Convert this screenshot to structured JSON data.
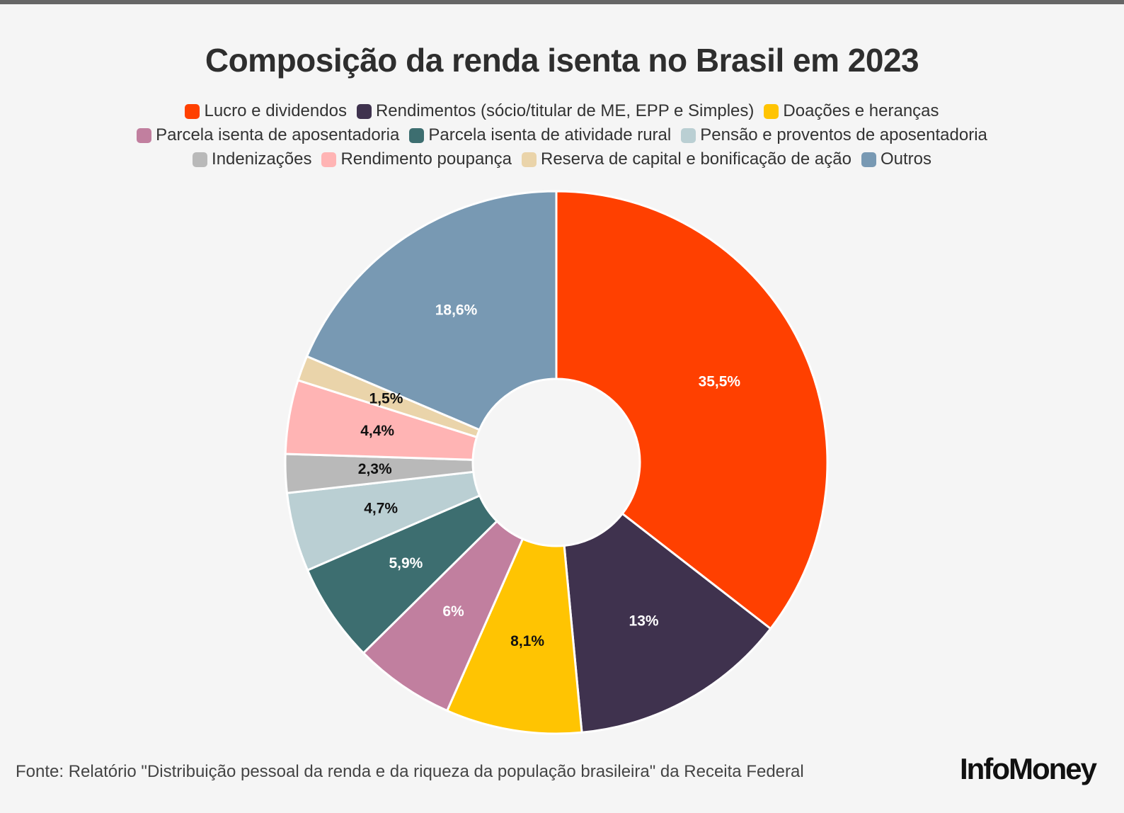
{
  "chart_data": {
    "type": "pie",
    "title": "Composição da renda isenta no Brasil em 2023",
    "legend_position": "top",
    "series": [
      {
        "name": "Lucro e dividendos",
        "value": 35.5,
        "label": "35,5%",
        "color": "#ff4000",
        "label_color": "#ffffff"
      },
      {
        "name": "Rendimentos (sócio/titular de ME, EPP e Simples)",
        "value": 13,
        "label": "13%",
        "color": "#3f324e",
        "label_color": "#ffffff"
      },
      {
        "name": "Doações e heranças",
        "value": 8.1,
        "label": "8,1%",
        "color": "#ffc402",
        "label_color": "#111111"
      },
      {
        "name": "Parcela isenta de aposentadoria",
        "value": 6,
        "label": "6%",
        "color": "#c17f9f",
        "label_color": "#ffffff"
      },
      {
        "name": "Parcela isenta de atividade rural",
        "value": 5.9,
        "label": "5,9%",
        "color": "#3d6e70",
        "label_color": "#ffffff"
      },
      {
        "name": "Pensão e proventos de aposentadoria",
        "value": 4.7,
        "label": "4,7%",
        "color": "#bacfd3",
        "label_color": "#111111"
      },
      {
        "name": "Indenizações",
        "value": 2.3,
        "label": "2,3%",
        "color": "#b9b9b9",
        "label_color": "#111111"
      },
      {
        "name": "Rendimento poupança",
        "value": 4.4,
        "label": "4,4%",
        "color": "#ffb4b4",
        "label_color": "#111111"
      },
      {
        "name": "Reserva de capital e bonificação de ação",
        "value": 1.5,
        "label": "1,5%",
        "color": "#ead4aa",
        "label_color": "#111111"
      },
      {
        "name": "Outros",
        "value": 18.6,
        "label": "18,6%",
        "color": "#7899b3",
        "label_color": "#ffffff"
      }
    ]
  },
  "legend_rows": [
    [
      0,
      1,
      2
    ],
    [
      3,
      4,
      5
    ],
    [
      6,
      7,
      8,
      9
    ]
  ],
  "source": "Fonte: Relatório \"Distribuição pessoal da renda e da riqueza da população brasileira\" da Receita Federal",
  "logo": "InfoMoney"
}
